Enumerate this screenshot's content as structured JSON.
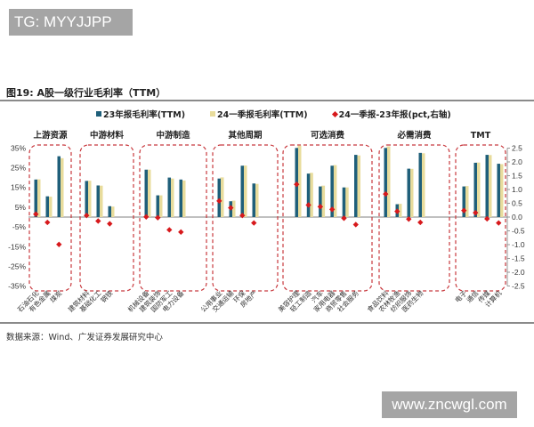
{
  "watermark_top": "TG: MYYJJPP",
  "watermark_bottom": "www.zncwgl.com",
  "figure_title": "图19:  A股一级行业毛利率（TTM）",
  "source": "数据来源：Wind、广发证券发展研究中心",
  "colors": {
    "series1": "#1f5f7a",
    "series2": "#e8dc9c",
    "series3": "#d7191c",
    "group_border": "#c8383d",
    "axis": "#808080"
  },
  "legend": [
    {
      "label": "23年报毛利率(TTM)",
      "marker": "square",
      "color": "#1f5f7a"
    },
    {
      "label": "24一季报毛利率(TTM)",
      "marker": "square",
      "color": "#e8dc9c"
    },
    {
      "label": "24一季报-23年报(pct,右轴)",
      "marker": "diamond",
      "color": "#d7191c"
    }
  ],
  "chart_data": {
    "type": "bar",
    "title": "A股一级行业毛利率（TTM）",
    "xlabel": "",
    "ylabel": "",
    "ylim": [
      -35,
      35
    ],
    "yticks": [
      "35%",
      "25%",
      "15%",
      "5%",
      "-5%",
      "-15%",
      "-25%",
      "-35%"
    ],
    "y2lim": [
      -2.5,
      2.5
    ],
    "y2ticks": [
      "2.5",
      "2.0",
      "1.5",
      "1.0",
      "0.5",
      "0.0",
      "-0.5",
      "-1.0",
      "-1.5",
      "-2.0",
      "-2.5"
    ],
    "grid": false,
    "legend_position": "top",
    "groups": [
      {
        "name": "上游资源",
        "categories": [
          "石油石化",
          "有色金属",
          "煤炭"
        ]
      },
      {
        "name": "中游材料",
        "categories": [
          "建筑材料",
          "基础化工",
          "钢铁"
        ]
      },
      {
        "name": "中游制造",
        "categories": [
          "机械设备",
          "建筑装饰",
          "国防军工",
          "电力设备"
        ]
      },
      {
        "name": "其他周期",
        "categories": [
          "公用事业",
          "交通运输",
          "环保",
          "房地产"
        ]
      },
      {
        "name": "可选消费",
        "categories": [
          "美容护理",
          "轻工制造",
          "汽车",
          "家用电器",
          "商贸零售",
          "社会服务"
        ]
      },
      {
        "name": "必需消费",
        "categories": [
          "食品饮料",
          "农林牧渔",
          "纺织服饰",
          "医药生物"
        ]
      },
      {
        "name": "TMT",
        "categories": [
          "电子",
          "通信",
          "传媒",
          "计算机"
        ]
      }
    ],
    "categories": [
      "石油石化",
      "有色金属",
      "煤炭",
      "建筑材料",
      "基础化工",
      "钢铁",
      "机械设备",
      "建筑装饰",
      "国防军工",
      "电力设备",
      "公用事业",
      "交通运输",
      "环保",
      "房地产",
      "美容护理",
      "轻工制造",
      "汽车",
      "家用电器",
      "商贸零售",
      "社会服务",
      "食品饮料",
      "农林牧渔",
      "纺织服饰",
      "医药生物",
      "电子",
      "通信",
      "传媒",
      "计算机"
    ],
    "series": [
      {
        "name": "23年报毛利率(TTM)",
        "axis": "left",
        "unit": "%",
        "values": [
          19.0,
          10.5,
          30.8,
          18.3,
          16.0,
          5.5,
          24.0,
          11.0,
          20.0,
          19.0,
          19.5,
          8.0,
          26.0,
          17.0,
          35.0,
          22.0,
          15.5,
          26.0,
          15.0,
          31.5,
          35.0,
          6.5,
          24.5,
          32.5,
          15.5,
          27.5,
          31.5,
          27.0
        ]
      },
      {
        "name": "24一季报毛利率(TTM)",
        "axis": "left",
        "unit": "%",
        "values": [
          19.1,
          10.3,
          29.8,
          18.4,
          15.9,
          5.3,
          24.0,
          11.0,
          19.5,
          18.5,
          20.1,
          8.3,
          26.1,
          16.8,
          36.2,
          22.4,
          15.9,
          26.3,
          15.0,
          31.2,
          35.8,
          6.7,
          24.4,
          32.3,
          15.7,
          27.6,
          31.4,
          26.8
        ]
      },
      {
        "name": "24一季报-23年报(pct,右轴)",
        "axis": "right",
        "unit": "pct",
        "values": [
          0.1,
          -0.2,
          -1.0,
          0.05,
          -0.15,
          -0.25,
          0.0,
          -0.03,
          -0.47,
          -0.55,
          0.58,
          0.33,
          0.05,
          -0.22,
          1.18,
          0.43,
          0.37,
          0.27,
          -0.05,
          -0.28,
          0.83,
          0.2,
          -0.08,
          -0.2,
          0.23,
          0.15,
          -0.07,
          -0.22
        ]
      }
    ]
  }
}
